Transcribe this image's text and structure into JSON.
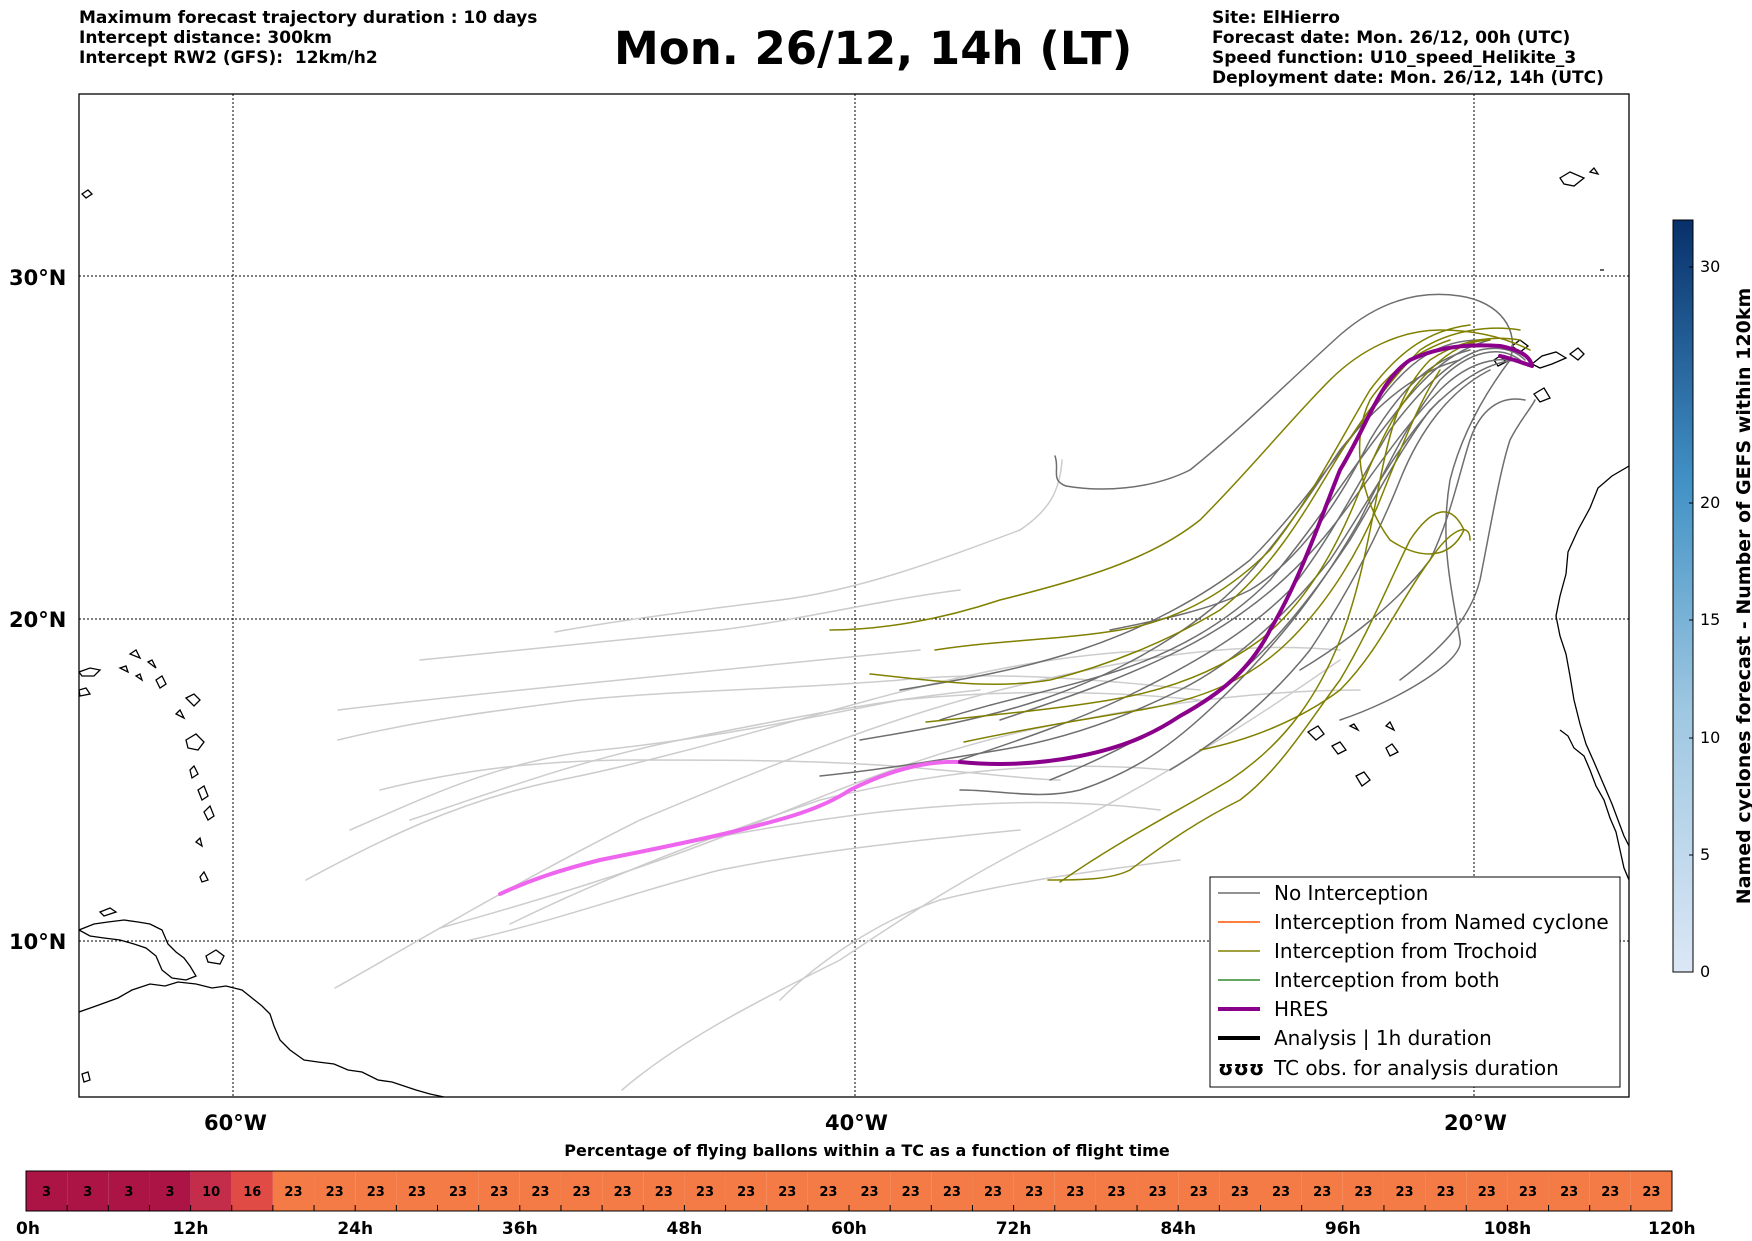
{
  "header": {
    "left_lines": [
      "Maximum forecast trajectory duration : 10 days",
      "Intercept distance: 300km",
      "Intercept RW2 (GFS):  12km/h2"
    ],
    "title": "Mon. 26/12, 14h (LT)",
    "right_lines": [
      "Site: ElHierro",
      "Forecast date: Mon. 26/12, 00h (UTC)",
      "Speed function: U10_speed_Helikite_3",
      "Deployment date: Mon. 26/12, 14h (UTC)"
    ]
  },
  "map": {
    "lat_labels": [
      "30°N",
      "20°N",
      "10°N"
    ],
    "lon_labels": [
      "60°W",
      "40°W",
      "20°W"
    ],
    "colors": {
      "no_interception": "#6e6e6e",
      "ensemble_light": "#cccccc",
      "named_cyclone": "#ff5500",
      "trochoid": "#808000",
      "both": "#2e8b2e",
      "hres": "#8b008b",
      "hres_early": "#ee66ee",
      "coast": "#000000"
    }
  },
  "legend": {
    "items": [
      {
        "label": "No Interception",
        "color": "#6e6e6e",
        "style": "thin"
      },
      {
        "label": "Interception from Named cyclone",
        "color": "#ff5500",
        "style": "thin"
      },
      {
        "label": "Interception from Trochoid",
        "color": "#808000",
        "style": "thin"
      },
      {
        "label": "Interception from both",
        "color": "#2e8b2e",
        "style": "thin"
      },
      {
        "label": "HRES",
        "color": "#8b008b",
        "style": "thick"
      },
      {
        "label": "Analysis | 1h duration",
        "color": "#000000",
        "style": "thick"
      },
      {
        "label": "TC obs. for analysis duration",
        "color": "#000000",
        "style": "symbol"
      }
    ],
    "symbol_glyph": "ʊʊʊ"
  },
  "colorbar": {
    "label": "Named cyclones forecast - Number of GEFS within 120km",
    "ticks": [
      "0",
      "5",
      "10",
      "15",
      "20",
      "30"
    ],
    "top_color": "#08306b",
    "bottom_color": "#dbe7f5"
  },
  "timeline": {
    "title": "Percentage of flying ballons within a TC as a function of flight time",
    "values": [
      "3",
      "3",
      "3",
      "3",
      "10",
      "16",
      "23",
      "23",
      "23",
      "23",
      "23",
      "23",
      "23",
      "23",
      "23",
      "23",
      "23",
      "23",
      "23",
      "23",
      "23",
      "23",
      "23",
      "23",
      "23",
      "23",
      "23",
      "23",
      "23",
      "23",
      "23",
      "23",
      "23",
      "23",
      "23",
      "23",
      "23",
      "23",
      "23",
      "23"
    ],
    "cell_colors": [
      "#ac1446",
      "#ac1446",
      "#ac1446",
      "#ac1446",
      "#c42d4a",
      "#e04b45",
      "#f47b45"
    ],
    "hour_labels": [
      "0h",
      "12h",
      "24h",
      "36h",
      "48h",
      "60h",
      "72h",
      "84h",
      "96h",
      "108h",
      "120h"
    ]
  }
}
